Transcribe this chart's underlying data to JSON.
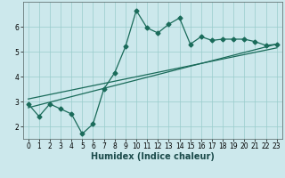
{
  "xlabel": "Humidex (Indice chaleur)",
  "background_color": "#cce8ec",
  "line_color": "#1a6b5a",
  "xlim": [
    -0.5,
    23.5
  ],
  "ylim": [
    1.5,
    7.0
  ],
  "xticks": [
    0,
    1,
    2,
    3,
    4,
    5,
    6,
    7,
    8,
    9,
    10,
    11,
    12,
    13,
    14,
    15,
    16,
    17,
    18,
    19,
    20,
    21,
    22,
    23
  ],
  "yticks": [
    2,
    3,
    4,
    5,
    6
  ],
  "data_x": [
    0,
    1,
    2,
    3,
    4,
    5,
    6,
    7,
    8,
    9,
    10,
    11,
    12,
    13,
    14,
    15,
    16,
    17,
    18,
    19,
    20,
    21,
    22,
    23
  ],
  "data_y": [
    2.9,
    2.4,
    2.9,
    2.7,
    2.5,
    1.7,
    2.1,
    3.5,
    4.15,
    5.2,
    6.65,
    5.95,
    5.75,
    6.1,
    6.35,
    5.3,
    5.6,
    5.45,
    5.5,
    5.5,
    5.5,
    5.4,
    5.25,
    5.3
  ],
  "trend1_x": [
    0,
    23
  ],
  "trend1_y": [
    2.75,
    5.3
  ],
  "trend2_x": [
    0,
    23
  ],
  "trend2_y": [
    3.1,
    5.15
  ],
  "grid_color": "#99cccc",
  "marker_size": 2.5,
  "line_width": 0.9,
  "xlabel_fontsize": 7,
  "tick_fontsize": 5.5
}
